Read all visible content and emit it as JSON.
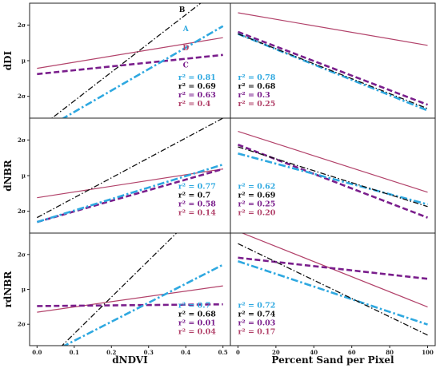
{
  "figure": {
    "columns": [
      {
        "xlabel": "dNDVI",
        "x_ticks": [
          "0.0",
          "0.1",
          "0.2",
          "0.3",
          "0.4",
          "0.5"
        ],
        "xlim": [
          -0.02,
          0.52
        ]
      },
      {
        "xlabel": "Percent Sand per Pixel",
        "x_ticks": [
          "0",
          "20",
          "40",
          "60",
          "80",
          "100"
        ],
        "xlim": [
          -4,
          104
        ]
      }
    ],
    "y_ticks": [
      "2σ",
      "μ",
      "2σ"
    ]
  },
  "colors": {
    "A": "#2ea8e0",
    "B": "#111111",
    "C": "#7a1e8c",
    "D": "#b2426a"
  },
  "chart_data": [
    {
      "type": "line",
      "row": 0,
      "col": 0,
      "ylabel": "dDI",
      "ylim": [
        -3,
        3
      ],
      "grid": false,
      "x": [
        0,
        0.5
      ],
      "series": [
        {
          "name": "A",
          "values": [
            -3.8,
            1.8
          ],
          "style": "dashdot-thick",
          "r2": "r² = 0.81"
        },
        {
          "name": "B",
          "values": [
            -3.6,
            3.9
          ],
          "style": "dashdot-thin",
          "r2": "r² = 0.69"
        },
        {
          "name": "C",
          "values": [
            -0.7,
            0.3
          ],
          "style": "dashed",
          "r2": "r² = 0.63"
        },
        {
          "name": "D",
          "values": [
            -0.4,
            1.2
          ],
          "style": "solid",
          "r2": "r² = 0.4"
        }
      ],
      "annotations": [
        {
          "text": "B",
          "series": "B",
          "x": 0.39,
          "y": 2.55
        },
        {
          "text": "A",
          "series": "A",
          "x": 0.4,
          "y": 1.55
        },
        {
          "text": "D",
          "series": "D",
          "x": 0.4,
          "y": 0.55
        },
        {
          "text": "C",
          "series": "C",
          "x": 0.4,
          "y": -0.35
        }
      ],
      "r2_position": [
        0.38,
        -1.0
      ]
    },
    {
      "type": "line",
      "row": 0,
      "col": 1,
      "ylabel": "",
      "ylim": [
        -3,
        3
      ],
      "grid": false,
      "x": [
        0,
        100
      ],
      "series": [
        {
          "name": "A",
          "values": [
            1.4,
            -2.6
          ],
          "style": "dashdot-thick",
          "r2": "r² = 0.78"
        },
        {
          "name": "B",
          "values": [
            1.4,
            -2.5
          ],
          "style": "dashdot-thin",
          "r2": "r² = 0.68"
        },
        {
          "name": "C",
          "values": [
            1.5,
            -2.3
          ],
          "style": "dashed",
          "r2": "r² = 0.3"
        },
        {
          "name": "D",
          "values": [
            2.5,
            0.8
          ],
          "style": "solid",
          "r2": "r² = 0.25"
        }
      ],
      "r2_position": [
        0,
        -1.0
      ]
    },
    {
      "type": "line",
      "row": 1,
      "col": 0,
      "ylabel": "dNBR",
      "ylim": [
        -2.6,
        2.6
      ],
      "grid": false,
      "x": [
        0,
        0.5
      ],
      "series": [
        {
          "name": "A",
          "values": [
            -2.1,
            0.5
          ],
          "style": "dashdot-thick",
          "r2": "r² = 0.77"
        },
        {
          "name": "B",
          "values": [
            -1.9,
            2.6
          ],
          "style": "dashdot-thin",
          "r2": "r² = 0.7"
        },
        {
          "name": "C",
          "values": [
            -2.1,
            0.3
          ],
          "style": "dashed",
          "r2": "r² = 0.58"
        },
        {
          "name": "D",
          "values": [
            -1.0,
            0.3
          ],
          "style": "solid",
          "r2": "r² = 0.14"
        }
      ],
      "r2_position": [
        0.38,
        -0.6
      ]
    },
    {
      "type": "line",
      "row": 1,
      "col": 1,
      "ylabel": "",
      "ylim": [
        -2.6,
        2.6
      ],
      "grid": false,
      "x": [
        0,
        100
      ],
      "series": [
        {
          "name": "A",
          "values": [
            1.0,
            -1.3
          ],
          "style": "dashdot-thick",
          "r2": "r² = 0.62"
        },
        {
          "name": "B",
          "values": [
            1.3,
            -1.4
          ],
          "style": "dashdot-thin",
          "r2": "r² = 0.69"
        },
        {
          "name": "C",
          "values": [
            1.4,
            -1.9
          ],
          "style": "dashed",
          "r2": "r² = 0.25"
        },
        {
          "name": "D",
          "values": [
            2.0,
            -0.75
          ],
          "style": "solid",
          "r2": "r² = 0.20"
        }
      ],
      "r2_position": [
        0,
        -0.6
      ]
    },
    {
      "type": "line",
      "row": 2,
      "col": 0,
      "ylabel": "rdNBR",
      "ylim": [
        -3.2,
        3.2
      ],
      "grid": false,
      "x": [
        0,
        0.5
      ],
      "series": [
        {
          "name": "A",
          "values": [
            -4.0,
            1.4
          ],
          "style": "dashdot-thick",
          "r2": "r² = 0.7"
        },
        {
          "name": "B",
          "values": [
            -4.6,
            5.8
          ],
          "style": "dashdot-thin",
          "r2": "r² = 0.68"
        },
        {
          "name": "C",
          "values": [
            -0.95,
            -0.85
          ],
          "style": "dashed",
          "r2": "r² = 0.01"
        },
        {
          "name": "D",
          "values": [
            -1.3,
            0.2
          ],
          "style": "solid",
          "r2": "r² = 0.04"
        }
      ],
      "r2_position": [
        0.38,
        -1.05
      ]
    },
    {
      "type": "line",
      "row": 2,
      "col": 1,
      "ylabel": "",
      "ylim": [
        -3.2,
        3.2
      ],
      "grid": false,
      "x": [
        0,
        100
      ],
      "series": [
        {
          "name": "A",
          "values": [
            1.6,
            -2.0
          ],
          "style": "dashdot-thick",
          "r2": "r² = 0.72"
        },
        {
          "name": "B",
          "values": [
            2.6,
            -2.6
          ],
          "style": "dashdot-thin",
          "r2": "r² = 0.74"
        },
        {
          "name": "C",
          "values": [
            1.8,
            0.6
          ],
          "style": "dashed",
          "r2": "r² = 0.03"
        },
        {
          "name": "D",
          "values": [
            3.3,
            -1.0
          ],
          "style": "solid",
          "r2": "r² = 0.17"
        }
      ],
      "r2_position": [
        0,
        -1.05
      ]
    }
  ]
}
